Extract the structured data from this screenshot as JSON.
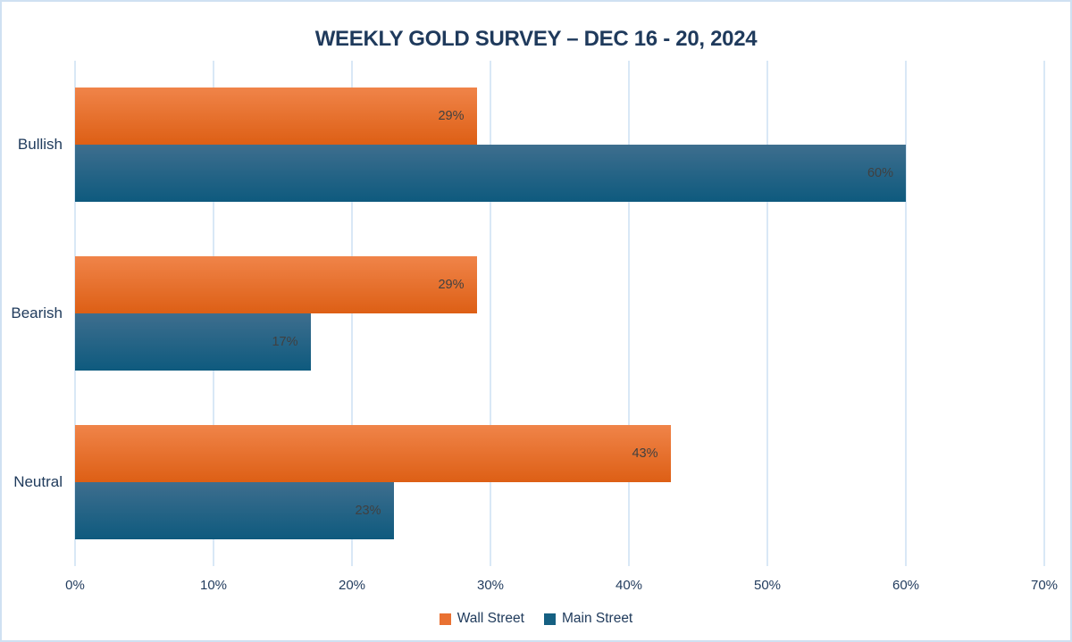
{
  "chart_data": {
    "type": "bar",
    "orientation": "horizontal",
    "title": "WEEKLY GOLD SURVEY – DEC 16 - 20, 2024",
    "categories": [
      "Bullish",
      "Bearish",
      "Neutral"
    ],
    "series": [
      {
        "name": "Wall Street",
        "values": [
          29,
          29,
          43
        ],
        "color": "#E97132",
        "gradient_top": "#F08449",
        "gradient_bottom": "#DD5F15"
      },
      {
        "name": "Main Street",
        "values": [
          60,
          17,
          23
        ],
        "color": "#156082",
        "gradient_top": "#3E6E8E",
        "gradient_bottom": "#0E5A7E"
      }
    ],
    "value_axis": {
      "min": 0,
      "max": 70,
      "step": 10,
      "tick_labels": [
        "0%",
        "10%",
        "20%",
        "30%",
        "40%",
        "50%",
        "60%",
        "70%"
      ]
    },
    "value_suffix": "%",
    "data_labels_position": "inside-end",
    "grid": true,
    "legend_position": "bottom"
  },
  "colors": {
    "title_text": "#1f3a5c",
    "axis_text": "#223c5e",
    "category_text": "#203b5c",
    "data_label_text": "#404040",
    "gridline": "#d9e8f6",
    "canvas_border": "#cfe1f2",
    "background": "#ffffff"
  }
}
